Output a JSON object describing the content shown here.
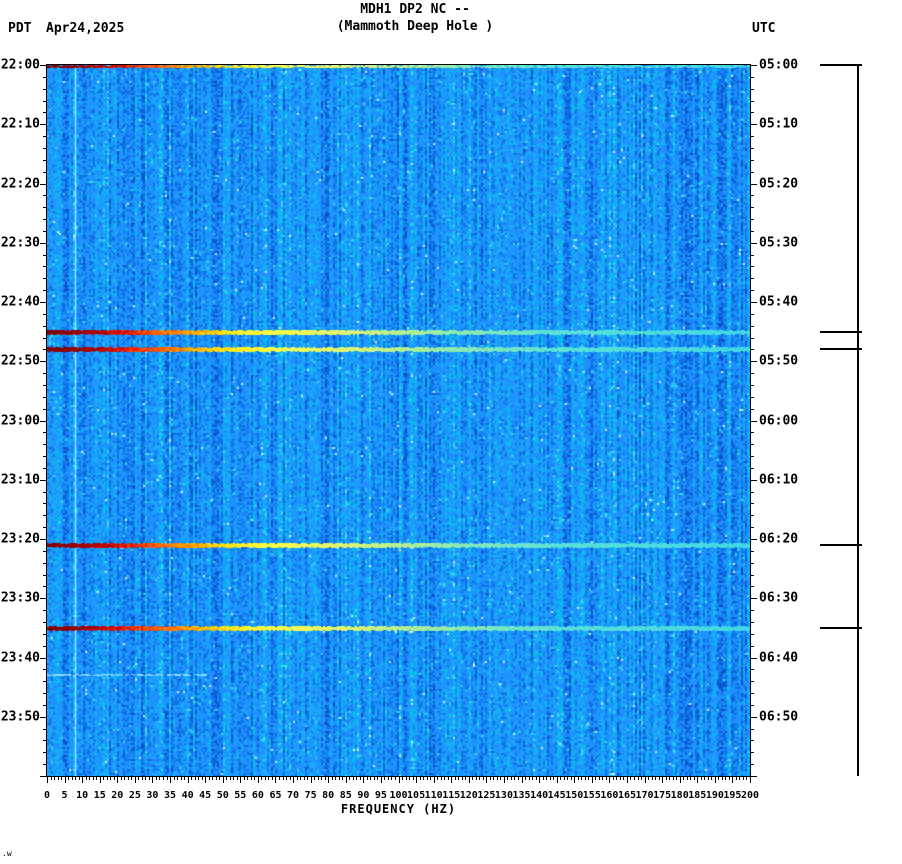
{
  "header": {
    "title_line1": "MDH1 DP2 NC --",
    "title_line2": "(Mammoth Deep Hole )",
    "left_timezone": "PDT",
    "date": "Apr24,2025",
    "right_timezone": "UTC"
  },
  "axes": {
    "xlabel": "FREQUENCY (HZ)",
    "left_times": [
      "22:00",
      "22:10",
      "22:20",
      "22:30",
      "22:40",
      "22:50",
      "23:00",
      "23:10",
      "23:20",
      "23:30",
      "23:40",
      "23:50"
    ],
    "right_times": [
      "05:00",
      "05:10",
      "05:20",
      "05:30",
      "05:40",
      "05:50",
      "06:00",
      "06:10",
      "06:20",
      "06:30",
      "06:40",
      "06:50"
    ],
    "freq_tick_labels": [
      "0",
      "5",
      "10",
      "15",
      "20",
      "25",
      "30",
      "35",
      "40",
      "45",
      "50",
      "55",
      "60",
      "65",
      "70",
      "75",
      "80",
      "85",
      "90",
      "95",
      "100",
      "105",
      "110",
      "115",
      "120",
      "125",
      "130",
      "135",
      "140",
      "145",
      "150",
      "155",
      "160",
      "165",
      "170",
      "175",
      "180",
      "185",
      "190",
      "195",
      "200"
    ]
  },
  "footer": {
    "mark": ".w"
  },
  "chart_data": {
    "type": "heatmap",
    "title": "MDH1 DP2 NC -- (Mammoth Deep Hole )",
    "station": "MDH1",
    "channel": "DP2",
    "network": "NC",
    "xlabel": "FREQUENCY (HZ)",
    "x_range_hz": [
      0,
      200
    ],
    "x_tick_step_hz": 5,
    "time_axis": {
      "start_pdt": "22:00",
      "end_pdt": "24:00",
      "start_utc": "05:00",
      "end_utc": "07:00",
      "tick_minutes": 10,
      "date_pdt": "Apr24,2025"
    },
    "background": {
      "description": "blue broadband noise",
      "palette": [
        "#0950c8",
        "#0e72e6",
        "#1e90ff",
        "#18aef5",
        "#00c4ea",
        "#45daf2",
        "#c8f4ff"
      ]
    },
    "event_colormap": [
      "#7f0000",
      "#d70a00",
      "#ff8c00",
      "#ffd700",
      "#ffff3c",
      "#e1f56e",
      "#96ebaa",
      "#41d7e4"
    ],
    "events": [
      {
        "time_pdt": "22:00",
        "time_utc": "05:00",
        "intensity": "strong",
        "freq_extent_hz": 200
      },
      {
        "time_pdt": "22:45",
        "time_utc": "05:45",
        "intensity": "strong",
        "freq_extent_hz": 200
      },
      {
        "time_pdt": "22:48",
        "time_utc": "05:48",
        "intensity": "strong",
        "freq_extent_hz": 200
      },
      {
        "time_pdt": "23:21",
        "time_utc": "06:21",
        "intensity": "strong",
        "freq_extent_hz": 200
      },
      {
        "time_pdt": "23:35",
        "time_utc": "06:35",
        "intensity": "strong",
        "freq_extent_hz": 200
      },
      {
        "time_pdt": "23:43",
        "time_utc": "06:43",
        "intensity": "weak",
        "freq_extent_hz": 45
      }
    ],
    "vertical_line_hz": 8,
    "right_margin_scale_line": true
  }
}
